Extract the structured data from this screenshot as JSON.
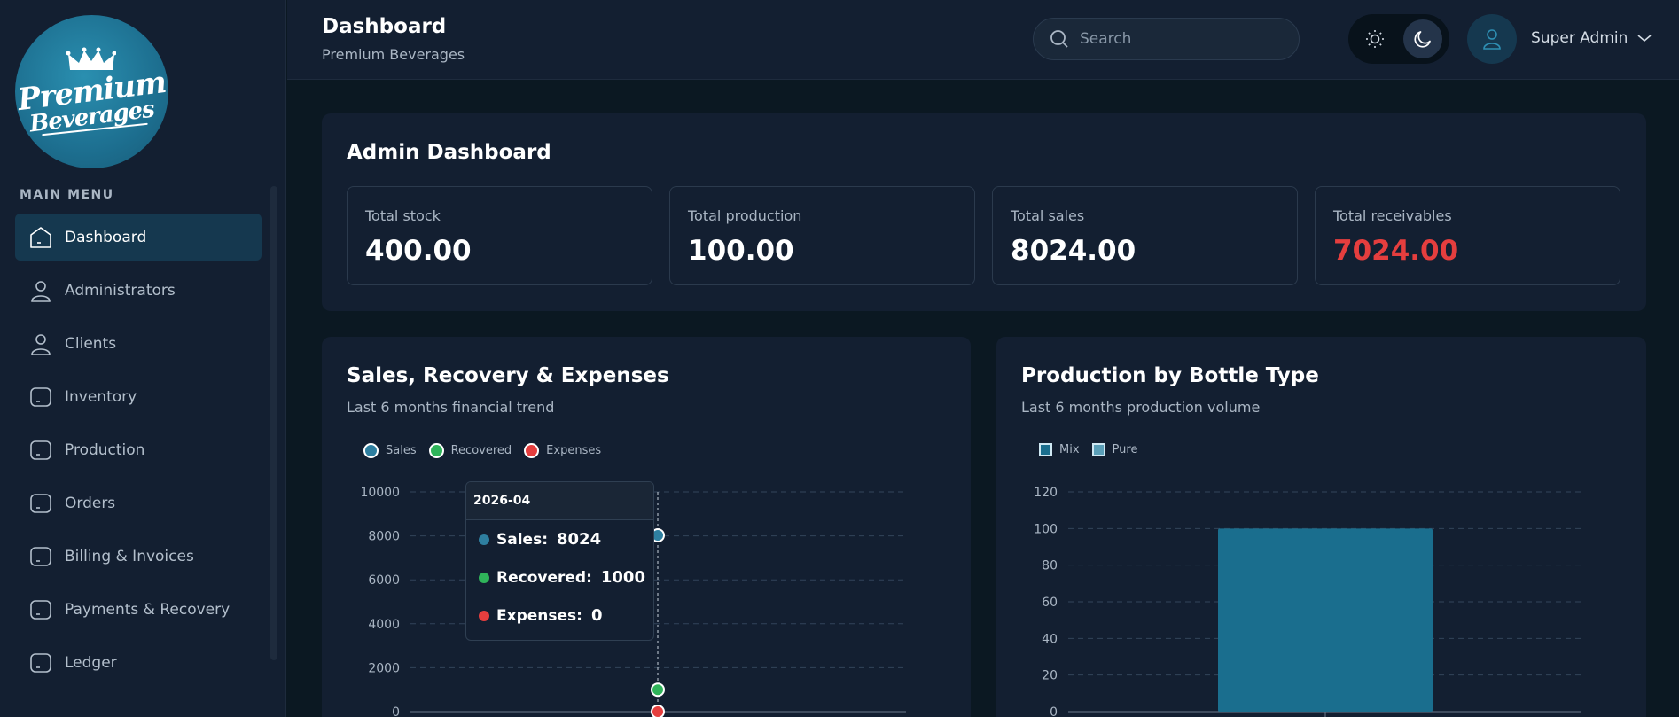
{
  "sidebar": {
    "logo": {
      "line1": "Premium",
      "line2": "Beverages"
    },
    "menu_title": "MAIN MENU",
    "items": [
      {
        "label": "Dashboard",
        "icon": "home-icon",
        "active": true
      },
      {
        "label": "Administrators",
        "icon": "user-icon"
      },
      {
        "label": "Clients",
        "icon": "user-icon"
      },
      {
        "label": "Inventory",
        "icon": "box-icon"
      },
      {
        "label": "Production",
        "icon": "box-icon"
      },
      {
        "label": "Orders",
        "icon": "box-icon"
      },
      {
        "label": "Billing & Invoices",
        "icon": "box-icon"
      },
      {
        "label": "Payments & Recovery",
        "icon": "box-icon"
      },
      {
        "label": "Ledger",
        "icon": "box-icon"
      }
    ]
  },
  "header": {
    "title": "Dashboard",
    "subtitle": "Premium Beverages",
    "search_placeholder": "Search",
    "user_name": "Super Admin"
  },
  "stats": {
    "heading": "Admin Dashboard",
    "items": [
      {
        "label": "Total stock",
        "value": "400.00"
      },
      {
        "label": "Total production",
        "value": "100.00"
      },
      {
        "label": "Total sales",
        "value": "8024.00"
      },
      {
        "label": "Total receivables",
        "value": "7024.00",
        "highlight": "#e53e3e"
      }
    ]
  },
  "colors": {
    "sales": "#2e7fa0",
    "recovered": "#2fb45a",
    "expenses": "#e53e3e",
    "mix": "#1a6e8e",
    "pure": "#5a9fb8",
    "accent": "#15384f"
  },
  "chart_data": [
    {
      "type": "line",
      "title": "Sales, Recovery & Expenses",
      "subtitle": "Last 6 months financial trend",
      "ylim": [
        0,
        10000
      ],
      "yticks": [
        "10000",
        "8000",
        "6000",
        "4000",
        "2000",
        "0"
      ],
      "series": [
        {
          "name": "Sales",
          "points": [
            {
              "x": "2026-04",
              "y": 8024
            }
          ]
        },
        {
          "name": "Recovered",
          "points": [
            {
              "x": "2026-04",
              "y": 1000
            }
          ]
        },
        {
          "name": "Expenses",
          "points": [
            {
              "x": "2026-04",
              "y": 0
            }
          ]
        }
      ],
      "grid": true,
      "legend": "top-left",
      "tooltip": {
        "title": "2026-04",
        "rows": [
          {
            "label": "Sales:",
            "value": "8024"
          },
          {
            "label": "Recovered:",
            "value": "1000"
          },
          {
            "label": "Expenses:",
            "value": "0"
          }
        ]
      }
    },
    {
      "type": "bar",
      "title": "Production by Bottle Type",
      "subtitle": "Last 6 months production volume",
      "ylim": [
        0,
        120
      ],
      "yticks": [
        "120",
        "100",
        "80",
        "60",
        "40",
        "20",
        "0"
      ],
      "series": [
        {
          "name": "Mix",
          "values": [
            100
          ]
        },
        {
          "name": "Pure",
          "values": [
            0
          ]
        }
      ],
      "grid": true,
      "legend": "top-left"
    }
  ]
}
